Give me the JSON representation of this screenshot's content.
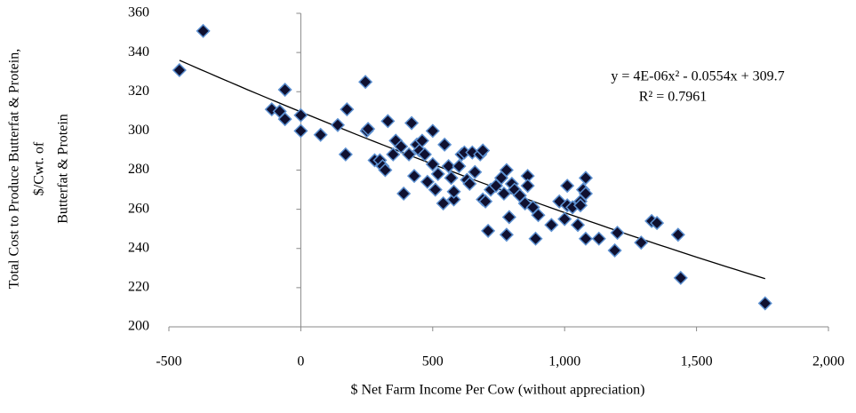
{
  "chart_data": {
    "type": "scatter",
    "xlabel": "$ Net Farm Income Per Cow (without appreciation)",
    "ylabel": [
      "Total Cost to Produce Butterfat & Protein,",
      "$/Cwt. of",
      "Butterfat & Protein"
    ],
    "x": [
      -460,
      -370,
      -110,
      -80,
      -60,
      -60,
      0,
      0,
      75,
      140,
      175,
      170,
      245,
      250,
      255,
      280,
      300,
      310,
      320,
      330,
      350,
      360,
      380,
      390,
      410,
      420,
      430,
      440,
      450,
      460,
      470,
      480,
      500,
      500,
      510,
      520,
      540,
      545,
      560,
      570,
      580,
      580,
      600,
      610,
      620,
      630,
      640,
      650,
      660,
      680,
      690,
      690,
      700,
      710,
      720,
      740,
      760,
      770,
      780,
      780,
      790,
      800,
      810,
      830,
      850,
      860,
      860,
      880,
      890,
      900,
      950,
      980,
      1000,
      1010,
      1010,
      1030,
      1050,
      1060,
      1060,
      1070,
      1080,
      1080,
      1080,
      1130,
      1190,
      1200,
      1290,
      1330,
      1350,
      1430,
      1440,
      1760
    ],
    "values": [
      331,
      351,
      311,
      310,
      306,
      321,
      308,
      300,
      298,
      303,
      311,
      288,
      325,
      300,
      301,
      285,
      285,
      282,
      280,
      305,
      288,
      295,
      292,
      268,
      288,
      304,
      277,
      293,
      290,
      295,
      288,
      274,
      300,
      283,
      270,
      278,
      263,
      293,
      282,
      276,
      265,
      269,
      282,
      288,
      289,
      275,
      273,
      289,
      279,
      288,
      265,
      290,
      264,
      249,
      270,
      272,
      276,
      268,
      280,
      247,
      256,
      273,
      270,
      267,
      263,
      277,
      272,
      261,
      245,
      257,
      252,
      264,
      255,
      272,
      262,
      261,
      252,
      264,
      262,
      270,
      276,
      268,
      245,
      245,
      239,
      248,
      243,
      254,
      253,
      247,
      225,
      212
    ],
    "marker_fill": "#0f1030",
    "marker_edge": "#5b8fd0",
    "xlim": [
      -500,
      2000
    ],
    "xticks": [
      -500,
      0,
      500,
      {
        "value": 1000,
        "label": "1,000"
      },
      {
        "value": 1500,
        "label": "1,500"
      },
      {
        "value": 2000,
        "label": "2,000"
      }
    ],
    "ylim": [
      200,
      360
    ],
    "yticks": [
      200,
      220,
      240,
      260,
      280,
      300,
      320,
      340,
      360
    ],
    "trendline": {
      "equation": "y = 4E-06x² - 0.0554x + 309.7",
      "r_squared": "R² = 0.7961",
      "coefficients": [
        4e-06,
        -0.0554,
        309.7
      ]
    }
  }
}
